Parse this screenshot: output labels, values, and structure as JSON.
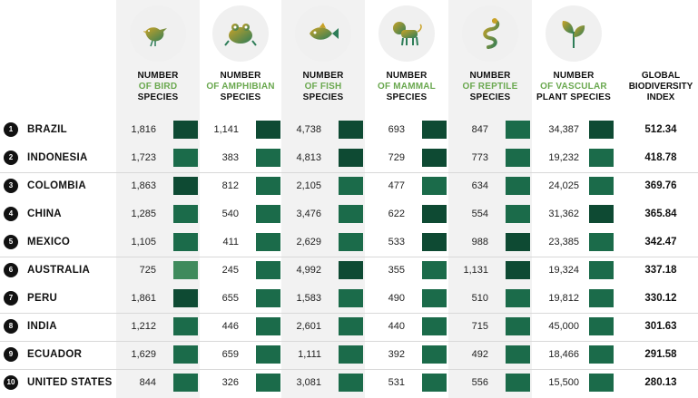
{
  "columns": [
    {
      "key": "bird",
      "icon": "bird-icon",
      "label_line1": "NUMBER",
      "label_line2_green": "OF BIRD",
      "label_line3": "SPECIES"
    },
    {
      "key": "amphibian",
      "icon": "frog-icon",
      "label_line1": "NUMBER",
      "label_line2_green": "OF AMPHIBIAN",
      "label_line3": "SPECIES"
    },
    {
      "key": "fish",
      "icon": "fish-icon",
      "label_line1": "NUMBER",
      "label_line2_green": "OF FISH",
      "label_line3": "SPECIES"
    },
    {
      "key": "mammal",
      "icon": "lion-icon",
      "label_line1": "NUMBER",
      "label_line2_green": "OF MAMMAL",
      "label_line3": "SPECIES"
    },
    {
      "key": "reptile",
      "icon": "snake-icon",
      "label_line1": "NUMBER",
      "label_line2_green": "OF REPTILE",
      "label_line3": "SPECIES"
    },
    {
      "key": "plant",
      "icon": "plant-icon",
      "label_line1": "NUMBER",
      "label_line2_green": "OF VASCULAR",
      "label_line3": "PLANT SPECIES"
    }
  ],
  "index_header": {
    "line1": "GLOBAL",
    "line2": "BIODIVERSITY",
    "line3": "INDEX"
  },
  "colors": {
    "dark": "#0e4a33",
    "mid": "#1b6b4a",
    "light": "#2e7d58",
    "pale": "#3f8a5c",
    "accent_green": "#6aa84f"
  },
  "rows": [
    {
      "rank": "1",
      "country": "BRAZIL",
      "bird": "1,816",
      "amphibian": "1,141",
      "fish": "4,738",
      "mammal": "693",
      "reptile": "847",
      "plant": "34,387",
      "index": "512.34",
      "shades": [
        "dark",
        "dark",
        "dark",
        "dark",
        "mid",
        "dark"
      ]
    },
    {
      "rank": "2",
      "country": "INDONESIA",
      "bird": "1,723",
      "amphibian": "383",
      "fish": "4,813",
      "mammal": "729",
      "reptile": "773",
      "plant": "19,232",
      "index": "418.78",
      "shades": [
        "mid",
        "mid",
        "dark",
        "dark",
        "mid",
        "mid"
      ]
    },
    {
      "rank": "3",
      "country": "COLOMBIA",
      "bird": "1,863",
      "amphibian": "812",
      "fish": "2,105",
      "mammal": "477",
      "reptile": "634",
      "plant": "24,025",
      "index": "369.76",
      "shades": [
        "dark",
        "mid",
        "mid",
        "mid",
        "mid",
        "mid"
      ]
    },
    {
      "rank": "4",
      "country": "CHINA",
      "bird": "1,285",
      "amphibian": "540",
      "fish": "3,476",
      "mammal": "622",
      "reptile": "554",
      "plant": "31,362",
      "index": "365.84",
      "shades": [
        "mid",
        "mid",
        "mid",
        "dark",
        "mid",
        "dark"
      ]
    },
    {
      "rank": "5",
      "country": "MEXICO",
      "bird": "1,105",
      "amphibian": "411",
      "fish": "2,629",
      "mammal": "533",
      "reptile": "988",
      "plant": "23,385",
      "index": "342.47",
      "shades": [
        "mid",
        "mid",
        "mid",
        "dark",
        "dark",
        "mid"
      ]
    },
    {
      "rank": "6",
      "country": "AUSTRALIA",
      "bird": "725",
      "amphibian": "245",
      "fish": "4,992",
      "mammal": "355",
      "reptile": "1,131",
      "plant": "19,324",
      "index": "337.18",
      "shades": [
        "pale",
        "mid",
        "dark",
        "mid",
        "dark",
        "mid"
      ]
    },
    {
      "rank": "7",
      "country": "PERU",
      "bird": "1,861",
      "amphibian": "655",
      "fish": "1,583",
      "mammal": "490",
      "reptile": "510",
      "plant": "19,812",
      "index": "330.12",
      "shades": [
        "dark",
        "mid",
        "mid",
        "mid",
        "mid",
        "mid"
      ]
    },
    {
      "rank": "8",
      "country": "INDIA",
      "bird": "1,212",
      "amphibian": "446",
      "fish": "2,601",
      "mammal": "440",
      "reptile": "715",
      "plant": "45,000",
      "index": "301.63",
      "shades": [
        "mid",
        "mid",
        "mid",
        "mid",
        "mid",
        "mid"
      ]
    },
    {
      "rank": "9",
      "country": "ECUADOR",
      "bird": "1,629",
      "amphibian": "659",
      "fish": "1,111",
      "mammal": "392",
      "reptile": "492",
      "plant": "18,466",
      "index": "291.58",
      "shades": [
        "mid",
        "mid",
        "mid",
        "mid",
        "mid",
        "mid"
      ]
    },
    {
      "rank": "10",
      "country": "UNITED STATES",
      "bird": "844",
      "amphibian": "326",
      "fish": "3,081",
      "mammal": "531",
      "reptile": "556",
      "plant": "15,500",
      "index": "280.13",
      "shades": [
        "mid",
        "mid",
        "mid",
        "mid",
        "mid",
        "mid"
      ]
    }
  ]
}
